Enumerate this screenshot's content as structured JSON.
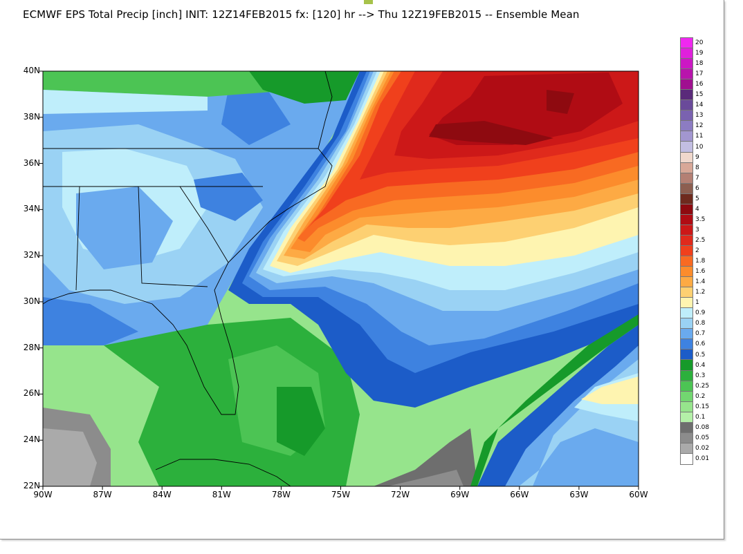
{
  "title": "ECMWF EPS Total Precip [inch] INIT: 12Z14FEB2015 fx: [120] hr --> Thu 12Z19FEB2015 -- Ensemble Mean",
  "map": {
    "lat_labels": [
      "40N",
      "38N",
      "36N",
      "34N",
      "32N",
      "30N",
      "28N",
      "26N",
      "24N",
      "22N"
    ],
    "lon_labels": [
      "90W",
      "87W",
      "84W",
      "81W",
      "78W",
      "75W",
      "72W",
      "69W",
      "66W",
      "63W",
      "60W"
    ]
  },
  "legend": {
    "entries": [
      {
        "label": "20",
        "color": "#f028f0"
      },
      {
        "label": "19",
        "color": "#e020dc"
      },
      {
        "label": "18",
        "color": "#cc18c4"
      },
      {
        "label": "17",
        "color": "#b814ac"
      },
      {
        "label": "16",
        "color": "#a01090"
      },
      {
        "label": "15",
        "color": "#5a2a7a"
      },
      {
        "label": "14",
        "color": "#6a4a9a"
      },
      {
        "label": "13",
        "color": "#7a62b0"
      },
      {
        "label": "12",
        "color": "#8c7cc2"
      },
      {
        "label": "11",
        "color": "#a296d0"
      },
      {
        "label": "10",
        "color": "#c2bee2"
      },
      {
        "label": "9",
        "color": "#f0d8cc"
      },
      {
        "label": "8",
        "color": "#d8a898"
      },
      {
        "label": "7",
        "color": "#b48074"
      },
      {
        "label": "6",
        "color": "#8c5e50"
      },
      {
        "label": "5",
        "color": "#6e2a1e"
      },
      {
        "label": "4",
        "color": "#8e0a10"
      },
      {
        "label": "3.5",
        "color": "#b00c14"
      },
      {
        "label": "3",
        "color": "#cc1818"
      },
      {
        "label": "2.5",
        "color": "#e02a1c"
      },
      {
        "label": "2",
        "color": "#f0401c"
      },
      {
        "label": "1.8",
        "color": "#f86a22"
      },
      {
        "label": "1.6",
        "color": "#fc8c2c"
      },
      {
        "label": "1.4",
        "color": "#fdaa44"
      },
      {
        "label": "1.2",
        "color": "#fdd072"
      },
      {
        "label": "1",
        "color": "#fef4b0"
      },
      {
        "label": "0.9",
        "color": "#bfeefb"
      },
      {
        "label": "0.8",
        "color": "#9ad2f4"
      },
      {
        "label": "0.7",
        "color": "#6aaaee"
      },
      {
        "label": "0.6",
        "color": "#3e82e0"
      },
      {
        "label": "0.5",
        "color": "#1c5cc8"
      },
      {
        "label": "0.4",
        "color": "#169a2a"
      },
      {
        "label": "0.3",
        "color": "#2cb03c"
      },
      {
        "label": "0.25",
        "color": "#4cc454"
      },
      {
        "label": "0.2",
        "color": "#72d670"
      },
      {
        "label": "0.15",
        "color": "#96e48c"
      },
      {
        "label": "0.1",
        "color": "#b4f0a8"
      },
      {
        "label": "0.08",
        "color": "#6e6e6e"
      },
      {
        "label": "0.05",
        "color": "#8c8c8c"
      },
      {
        "label": "0.02",
        "color": "#aaaaaa"
      },
      {
        "label": "0.01",
        "color": "#ffffff"
      }
    ]
  }
}
